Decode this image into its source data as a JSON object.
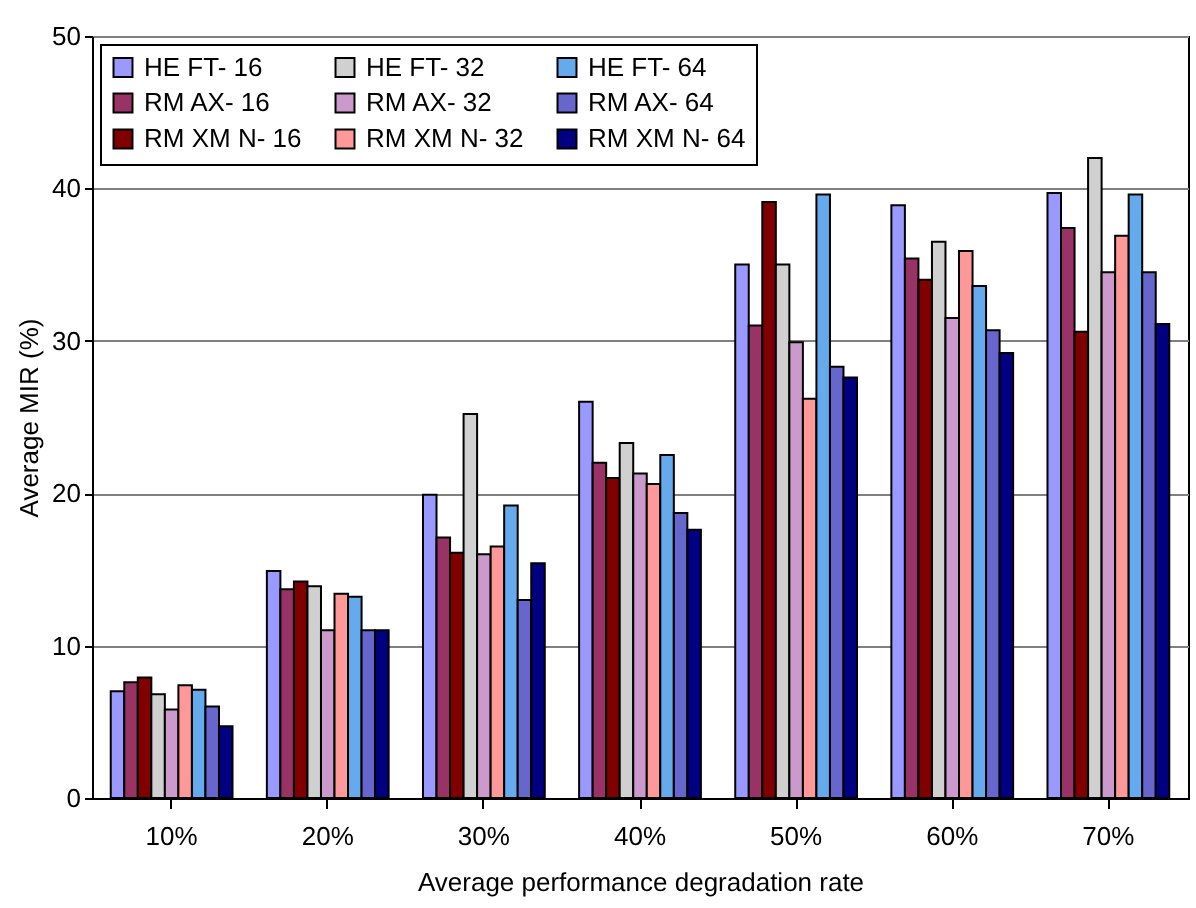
{
  "chart_data": {
    "type": "bar",
    "xlabel": "Average performance degradation rate",
    "ylabel": "Average MIR (%)",
    "categories": [
      "10%",
      "20%",
      "30%",
      "40%",
      "50%",
      "60%",
      "70%"
    ],
    "series": [
      {
        "name": "HE FT- 16",
        "color": "#9999ff",
        "values": [
          7.0,
          14.9,
          19.9,
          26.0,
          35.0,
          38.9,
          39.7
        ]
      },
      {
        "name": "RM AX- 16",
        "color": "#993366",
        "values": [
          7.6,
          13.7,
          17.1,
          22.0,
          31.0,
          35.4,
          37.4
        ]
      },
      {
        "name": "RM XM N- 16",
        "color": "#800000",
        "values": [
          7.9,
          14.2,
          16.1,
          21.0,
          39.1,
          34.0,
          30.6
        ]
      },
      {
        "name": "HE FT- 32",
        "color": "#d0d0d0",
        "values": [
          6.8,
          13.9,
          25.2,
          23.3,
          35.0,
          36.5,
          42.0
        ]
      },
      {
        "name": "RM AX- 32",
        "color": "#cc99cc",
        "values": [
          5.8,
          11.0,
          16.0,
          21.3,
          29.9,
          31.5,
          34.5
        ]
      },
      {
        "name": "RM XM N- 32",
        "color": "#ff9999",
        "values": [
          7.4,
          13.4,
          16.5,
          20.6,
          26.2,
          35.9,
          36.9
        ]
      },
      {
        "name": "HE FT- 64",
        "color": "#66aaee",
        "values": [
          7.1,
          13.2,
          19.2,
          22.5,
          39.6,
          33.6,
          39.6
        ]
      },
      {
        "name": "RM AX- 64",
        "color": "#6666cc",
        "values": [
          6.0,
          11.0,
          13.0,
          18.7,
          28.3,
          30.7,
          34.5
        ]
      },
      {
        "name": "RM XM N- 64",
        "color": "#000080",
        "values": [
          4.7,
          11.0,
          15.4,
          17.6,
          27.6,
          29.2,
          31.1
        ]
      }
    ],
    "ylim": [
      0,
      50
    ],
    "yticks": [
      0,
      10,
      20,
      30,
      40,
      50
    ],
    "grid": "y",
    "legend": "top left"
  }
}
